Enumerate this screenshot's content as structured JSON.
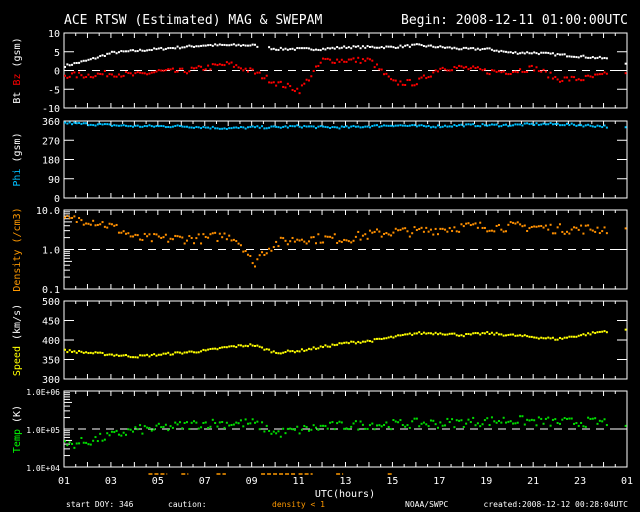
{
  "chart_data": {
    "type": "scatter",
    "title": "ACE RTSW (Estimated) MAG & SWEPAM",
    "begin": "Begin: 2008-12-11 01:00:00UTC",
    "xlabel": "UTC(hours)",
    "x_ticks": [
      "01",
      "03",
      "05",
      "07",
      "09",
      "11",
      "13",
      "15",
      "17",
      "19",
      "21",
      "23",
      "01"
    ],
    "x_range_hours": [
      0,
      24
    ],
    "hours": [
      0,
      1,
      2,
      3,
      4,
      5,
      6,
      7,
      8,
      9,
      10,
      11,
      12,
      13,
      14,
      15,
      16,
      17,
      18,
      19,
      20,
      21,
      22,
      23,
      24
    ],
    "footer": {
      "start_doy": "start DOY: 346",
      "caution": "caution:",
      "density_note": "density < 1",
      "agency": "NOAA/SWPC",
      "created": "created:2008-12-12 00:28:04UTC"
    },
    "caution_intervals_hours": [
      [
        3.6,
        4.4
      ],
      [
        5.0,
        5.3
      ],
      [
        6.5,
        6.9
      ],
      [
        8.4,
        9.9
      ],
      [
        10.0,
        10.6
      ],
      [
        11.6,
        11.9
      ],
      [
        13.8,
        14.0
      ]
    ],
    "panels": [
      {
        "id": "mag",
        "ylabel": [
          "Bt",
          "Bz",
          "(gsm)"
        ],
        "ylabel_colors": [
          "#ffffff",
          "#ff0000",
          "#ffffff"
        ],
        "ylim": [
          -10,
          10
        ],
        "scale": "linear",
        "y_ticks": [
          "10",
          "5",
          "0",
          "-5",
          "-10"
        ],
        "tick_values": [
          10,
          5,
          0,
          -5,
          -10
        ],
        "refline": 0,
        "series": [
          {
            "name": "Bt",
            "color": "#ffffff",
            "values": [
              1.5,
              3,
              5,
              5.5,
              6,
              6.5,
              7,
              7,
              7,
              6,
              6,
              6,
              6.5,
              6.5,
              6.5,
              7,
              6.5,
              6,
              6,
              5,
              5,
              4.5,
              4,
              3.5,
              2
            ]
          },
          {
            "name": "Bz",
            "color": "#ff0000",
            "values": [
              -1,
              -1,
              -0.5,
              -1,
              0,
              0,
              1,
              2,
              0,
              -3,
              -5,
              3,
              3,
              3,
              -3,
              -3,
              1,
              1,
              0,
              0,
              1,
              -2,
              -2,
              -1,
              0
            ]
          }
        ]
      },
      {
        "id": "phi",
        "ylabel": [
          "Phi",
          "(gsm)"
        ],
        "ylabel_colors": [
          "#00bfff",
          "#ffffff"
        ],
        "ylim": [
          0,
          360
        ],
        "scale": "linear",
        "y_ticks": [
          "360",
          "270",
          "180",
          "90",
          "0"
        ],
        "tick_values": [
          360,
          270,
          180,
          90,
          0
        ],
        "series": [
          {
            "name": "Phi",
            "color": "#00c0ff",
            "values": [
              355,
              350,
              345,
              340,
              340,
              340,
              335,
              330,
              335,
              335,
              340,
              335,
              335,
              340,
              345,
              340,
              340,
              345,
              345,
              345,
              350,
              350,
              345,
              340,
              330
            ]
          }
        ]
      },
      {
        "id": "density",
        "ylabel": [
          "Density",
          "(/cm3)"
        ],
        "ylabel_colors": [
          "#ff9900",
          "#ff9900"
        ],
        "ylim": [
          0.1,
          10
        ],
        "scale": "log",
        "y_ticks": [
          "10.0",
          "1.0",
          "0.1"
        ],
        "tick_values": [
          10,
          1,
          0.1
        ],
        "refline": 1,
        "series": [
          {
            "name": "Density",
            "color": "#ff9000",
            "values": [
              6,
              6,
              4,
              2,
              2,
              2,
              2,
              2.5,
              0.4,
              1.5,
              2,
              2,
              2,
              2.5,
              3,
              3,
              3.5,
              4,
              4,
              4,
              4,
              3.5,
              3.5,
              3.5,
              3.5
            ]
          }
        ]
      },
      {
        "id": "speed",
        "ylabel": [
          "Speed",
          "(km/s)"
        ],
        "ylabel_colors": [
          "#ffff00",
          "#ffffff"
        ],
        "ylim": [
          300,
          500
        ],
        "scale": "linear",
        "y_ticks": [
          "500",
          "450",
          "400",
          "350",
          "300"
        ],
        "tick_values": [
          500,
          450,
          400,
          350,
          300
        ],
        "series": [
          {
            "name": "Speed",
            "color": "#ffff00",
            "values": [
              375,
              370,
              365,
              360,
              365,
              370,
              375,
              385,
              390,
              370,
              375,
              385,
              395,
              400,
              410,
              420,
              420,
              415,
              420,
              415,
              410,
              405,
              415,
              425,
              430
            ]
          }
        ]
      },
      {
        "id": "temp",
        "ylabel": [
          "Temp",
          "(K)"
        ],
        "ylabel_colors": [
          "#00ff00",
          "#ffffff"
        ],
        "ylim": [
          10000,
          1000000
        ],
        "scale": "log",
        "y_ticks": [
          "1.0E+06",
          "1.0E+05",
          "1.0E+04"
        ],
        "tick_values": [
          1000000,
          100000,
          10000
        ],
        "refline": 100000,
        "series": [
          {
            "name": "Temp",
            "color": "#00dd00",
            "values": [
              40000,
              50000,
              70000,
              100000,
              110000,
              130000,
              150000,
              150000,
              150000,
              80000,
              100000,
              120000,
              130000,
              140000,
              140000,
              150000,
              150000,
              160000,
              170000,
              180000,
              170000,
              160000,
              160000,
              160000,
              160000
            ]
          }
        ]
      }
    ]
  }
}
